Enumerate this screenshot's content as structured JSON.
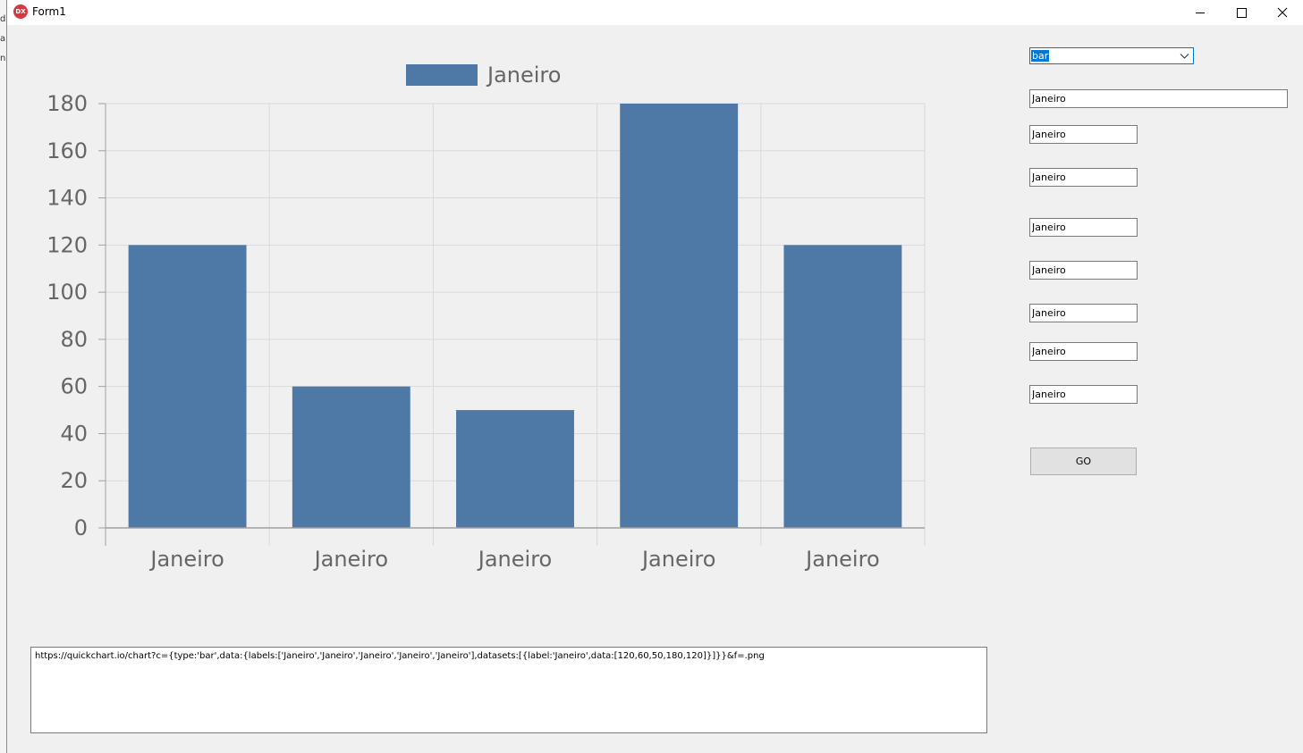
{
  "window": {
    "title": "Form1",
    "icon_label": "DX"
  },
  "background_window": {
    "fragments": [
      "di",
      "a",
      "n"
    ]
  },
  "chart_data": {
    "type": "bar",
    "categories": [
      "Janeiro",
      "Janeiro",
      "Janeiro",
      "Janeiro",
      "Janeiro"
    ],
    "series": [
      {
        "name": "Janeiro",
        "values": [
          120,
          60,
          50,
          180,
          120
        ],
        "color": "#4e79a7"
      }
    ],
    "ylim": [
      0,
      180
    ],
    "yticks": [
      0,
      20,
      40,
      60,
      80,
      100,
      120,
      140,
      160,
      180
    ],
    "grid": true,
    "legend_position": "top"
  },
  "controls": {
    "chart_type": {
      "value": "bar"
    },
    "text_fields": [
      {
        "value": "Janeiro"
      },
      {
        "value": "Janeiro"
      },
      {
        "value": "Janeiro"
      },
      {
        "value": "Janeiro"
      },
      {
        "value": "Janeiro"
      },
      {
        "value": "Janeiro"
      },
      {
        "value": "Janeiro"
      },
      {
        "value": "Janeiro"
      }
    ],
    "go_label": "GO"
  },
  "url_output": "https://quickchart.io/chart?c={type:'bar',data:{labels:['Janeiro','Janeiro','Janeiro','Janeiro','Janeiro'],datasets:[{label:'Janeiro',data:[120,60,50,180,120]}]}}&f=.png"
}
